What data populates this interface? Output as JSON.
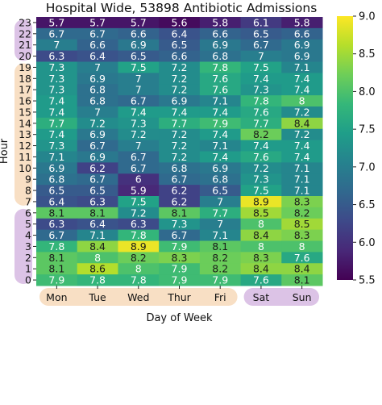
{
  "chart_data": {
    "type": "heatmap",
    "title": "Hospital Wide, 53898 Antibiotic Admissions",
    "xlabel": "Day of Week",
    "ylabel": "Hour",
    "x_categories": [
      "Mon",
      "Tue",
      "Wed",
      "Thur",
      "Fri",
      "Sat",
      "Sun"
    ],
    "y_categories": [
      "23",
      "22",
      "21",
      "20",
      "19",
      "18",
      "17",
      "16",
      "15",
      "14",
      "13",
      "12",
      "11",
      "10",
      "9",
      "8",
      "7",
      "6",
      "5",
      "4",
      "3",
      "2",
      "1",
      "0"
    ],
    "values": [
      [
        5.7,
        5.7,
        5.7,
        5.6,
        5.8,
        6.1,
        5.8
      ],
      [
        6.7,
        6.7,
        6.6,
        6.4,
        6.6,
        6.5,
        6.6
      ],
      [
        7,
        6.6,
        6.9,
        6.5,
        6.9,
        6.7,
        6.9
      ],
      [
        6.3,
        6.4,
        6.5,
        6.6,
        6.8,
        7,
        6.9
      ],
      [
        7.3,
        7,
        7.5,
        7.2,
        7.8,
        7.5,
        7.1
      ],
      [
        7.3,
        6.9,
        7,
        7.2,
        7.6,
        7.4,
        7.4
      ],
      [
        7.3,
        6.8,
        7,
        7.2,
        7.6,
        7.3,
        7.4
      ],
      [
        7.4,
        6.8,
        6.7,
        6.9,
        7.1,
        7.8,
        8
      ],
      [
        7.4,
        7,
        7.4,
        7.4,
        7.4,
        7.6,
        7.2
      ],
      [
        7.7,
        7.2,
        7.3,
        7.7,
        7.9,
        7.7,
        8.4
      ],
      [
        7.4,
        6.9,
        7.2,
        7.2,
        7.4,
        8.2,
        7.2
      ],
      [
        7.3,
        6.7,
        7,
        7.2,
        7.1,
        7.4,
        7.4
      ],
      [
        7.1,
        6.9,
        6.7,
        7.2,
        7.4,
        7.6,
        7.4
      ],
      [
        6.9,
        6.2,
        6.7,
        6.8,
        6.9,
        7.2,
        7.1
      ],
      [
        6.8,
        6.7,
        6,
        6.7,
        6.8,
        7.3,
        7.1
      ],
      [
        6.5,
        6.5,
        5.9,
        6.2,
        6.5,
        7.5,
        7.1
      ],
      [
        6.4,
        6.3,
        7.5,
        6.2,
        7,
        8.9,
        8.3
      ],
      [
        8.1,
        8.1,
        7.2,
        8.1,
        7.7,
        8.5,
        8.2
      ],
      [
        6.3,
        6.4,
        6.3,
        7.3,
        7,
        8,
        8.5
      ],
      [
        6.7,
        7.1,
        7.8,
        6.7,
        7.1,
        8.4,
        8.3
      ],
      [
        7.8,
        8.4,
        8.9,
        7.9,
        8.1,
        8,
        8
      ],
      [
        8.1,
        8,
        8.2,
        8.3,
        8.2,
        8.3,
        7.6
      ],
      [
        8.1,
        8.6,
        8,
        7.9,
        8.2,
        8.4,
        8.4
      ],
      [
        7.9,
        7.8,
        7.8,
        7.9,
        7.9,
        7.6,
        8.1
      ]
    ],
    "colorbar": {
      "min": 5.5,
      "max": 9.0,
      "ticks": [
        "5.5",
        "6.0",
        "6.5",
        "7.0",
        "7.5",
        "8.0",
        "8.5",
        "9.0"
      ],
      "colormap": "viridis"
    },
    "highlight_colors": {
      "weekday_band": "#f8dfc4",
      "weekend_band": "#dcc3e6",
      "night_band": "#dcc3e6",
      "day_band": "#f8dfc4"
    }
  }
}
